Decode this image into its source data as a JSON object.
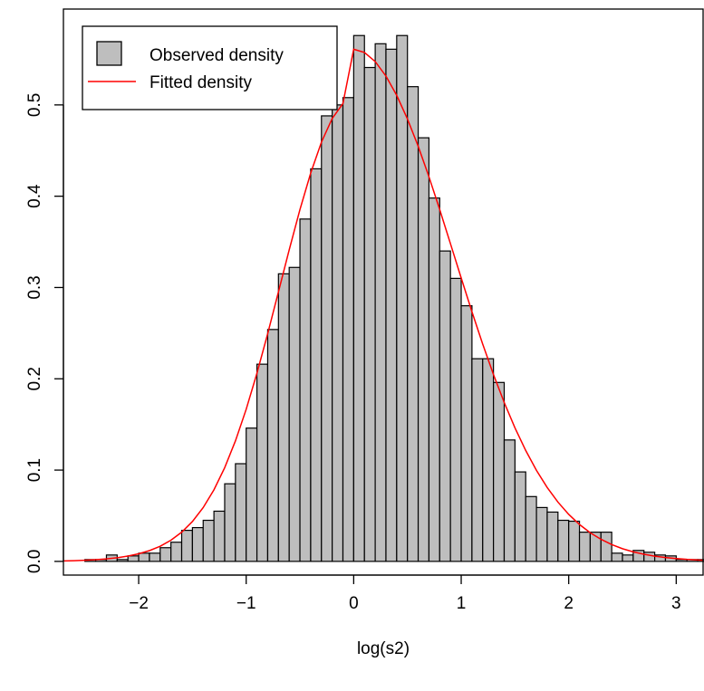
{
  "chart_data": {
    "type": "bar",
    "title": "",
    "xlabel": "log(s2)",
    "ylabel": "",
    "xlim": [
      -2.7,
      3.25
    ],
    "ylim": [
      -0.015,
      0.605
    ],
    "grid": false,
    "legend_position": "top-left",
    "x_ticks": [
      -2,
      -1,
      0,
      1,
      2,
      3
    ],
    "x_tick_labels": [
      "−2",
      "−1",
      "0",
      "1",
      "2",
      "3"
    ],
    "y_ticks": [
      0.0,
      0.1,
      0.2,
      0.3,
      0.4,
      0.5
    ],
    "y_tick_labels": [
      "0.0",
      "0.1",
      "0.2",
      "0.3",
      "0.4",
      "0.5"
    ],
    "bin_width": 0.1,
    "bins_start": -2.5,
    "bin_edges_start_end": [
      -2.5,
      3.1
    ],
    "values": [
      0.002,
      0.002,
      0.007,
      0.002,
      0.006,
      0.009,
      0.009,
      0.015,
      0.021,
      0.034,
      0.037,
      0.045,
      0.055,
      0.085,
      0.107,
      0.146,
      0.216,
      0.254,
      0.315,
      0.322,
      0.375,
      0.43,
      0.488,
      0.5,
      0.508,
      0.576,
      0.541,
      0.567,
      0.561,
      0.576,
      0.52,
      0.464,
      0.398,
      0.34,
      0.31,
      0.28,
      0.222,
      0.222,
      0.196,
      0.133,
      0.098,
      0.071,
      0.059,
      0.054,
      0.045,
      0.044,
      0.032,
      0.032,
      0.032,
      0.009,
      0.007,
      0.012,
      0.01,
      0.007,
      0.006,
      0.002,
      0.002,
      0.002,
      0.007,
      0.002
    ],
    "bar_fill": "#bebebe",
    "bar_stroke": "#000000",
    "series": [
      {
        "name": "Observed density",
        "kind": "histogram",
        "color": "#bebebe"
      },
      {
        "name": "Fitted density",
        "kind": "line",
        "color": "#ff0000"
      }
    ],
    "fitted_density": {
      "x": [
        -2.7,
        -2.6,
        -2.5,
        -2.4,
        -2.3,
        -2.2,
        -2.1,
        -2.0,
        -1.9,
        -1.8,
        -1.7,
        -1.6,
        -1.5,
        -1.4,
        -1.3,
        -1.2,
        -1.1,
        -1.0,
        -0.9,
        -0.8,
        -0.7,
        -0.6,
        -0.5,
        -0.4,
        -0.3,
        -0.2,
        -0.1,
        0.0,
        0.1,
        0.2,
        0.3,
        0.4,
        0.5,
        0.6,
        0.7,
        0.8,
        0.9,
        1.0,
        1.1,
        1.2,
        1.3,
        1.4,
        1.5,
        1.6,
        1.7,
        1.8,
        1.9,
        2.0,
        2.1,
        2.2,
        2.3,
        2.4,
        2.5,
        2.6,
        2.7,
        2.8,
        2.9,
        3.0,
        3.1,
        3.25
      ],
      "y": [
        0.0005,
        0.0008,
        0.0012,
        0.0018,
        0.0027,
        0.004,
        0.0058,
        0.0083,
        0.0118,
        0.0166,
        0.0232,
        0.032,
        0.0437,
        0.0589,
        0.0784,
        0.1026,
        0.132,
        0.1666,
        0.2061,
        0.2494,
        0.2952,
        0.3412,
        0.3853,
        0.4253,
        0.4592,
        0.4851,
        0.5015,
        0.561,
        0.5575,
        0.5475,
        0.5316,
        0.5105,
        0.4846,
        0.4547,
        0.4213,
        0.3854,
        0.348,
        0.3104,
        0.2734,
        0.238,
        0.2047,
        0.1741,
        0.1463,
        0.1215,
        0.0997,
        0.0809,
        0.0649,
        0.0515,
        0.0404,
        0.0314,
        0.0242,
        0.0184,
        0.0139,
        0.0104,
        0.0078,
        0.0057,
        0.0042,
        0.0031,
        0.0022,
        0.0013
      ],
      "color": "#ff0000"
    }
  }
}
